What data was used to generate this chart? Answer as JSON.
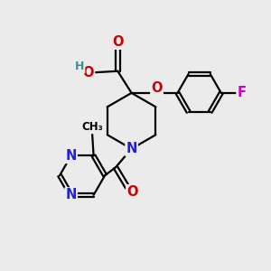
{
  "bg_color": "#ebebeb",
  "atom_colors": {
    "C": "#000000",
    "H": "#4a8a8a",
    "O": "#cc0000",
    "N": "#2020dd",
    "F": "#cc00cc"
  },
  "bond_color": "#000000",
  "bond_width": 1.6,
  "font_size": 10.5
}
